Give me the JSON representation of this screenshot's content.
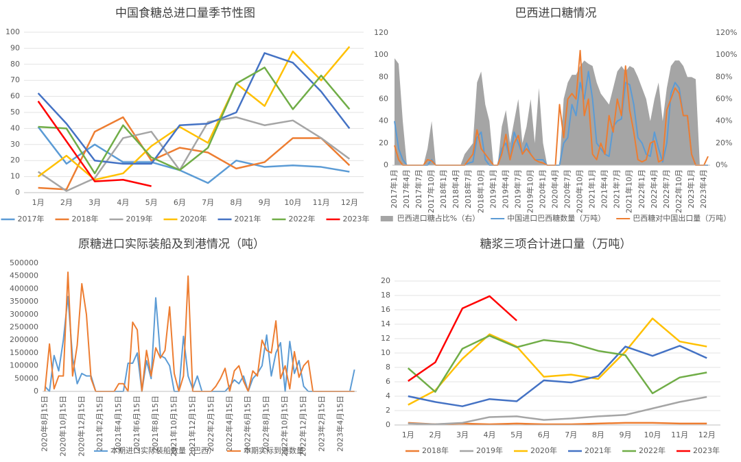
{
  "chart_data": [
    {
      "type": "line",
      "title": "中国食糖总进口量季节性图",
      "categories": [
        "1月",
        "2月",
        "3月",
        "4月",
        "5月",
        "6月",
        "7月",
        "8月",
        "9月",
        "10月",
        "11月",
        "12月"
      ],
      "ylim": [
        0,
        100
      ],
      "yticks": [
        0,
        10,
        20,
        30,
        40,
        50,
        60,
        70,
        80,
        90,
        100
      ],
      "grid": true,
      "series": [
        {
          "name": "2017年",
          "color": "#5b9bd5",
          "values": [
            41,
            18,
            30,
            19,
            19,
            14,
            6,
            20,
            16,
            17,
            16,
            13
          ]
        },
        {
          "name": "2018年",
          "color": "#ed7d31",
          "values": [
            3,
            2,
            38,
            47,
            20,
            28,
            25,
            15,
            19,
            34,
            34,
            17
          ]
        },
        {
          "name": "2019年",
          "color": "#a5a5a5",
          "values": [
            13,
            1,
            9,
            34,
            38,
            14,
            44,
            47,
            42,
            45,
            34,
            21
          ]
        },
        {
          "name": "2020年",
          "color": "#ffc000",
          "values": [
            10,
            23,
            8,
            12,
            29,
            41,
            31,
            68,
            54,
            88,
            70,
            91
          ]
        },
        {
          "name": "2021年",
          "color": "#4472c4",
          "values": [
            62,
            43,
            20,
            18,
            18,
            42,
            43,
            50,
            87,
            81,
            63,
            40
          ]
        },
        {
          "name": "2022年",
          "color": "#70ad47",
          "values": [
            41,
            40,
            12,
            42,
            22,
            14,
            28,
            68,
            78,
            52,
            73,
            52
          ]
        },
        {
          "name": "2023年",
          "color": "#ff0000",
          "values": [
            57,
            32,
            7,
            8,
            4,
            null,
            null,
            null,
            null,
            null,
            null,
            null
          ]
        }
      ]
    },
    {
      "type": "line",
      "title": "巴西进口糖情况",
      "categories": [
        "2017年1月",
        null,
        null,
        "2017年4月",
        null,
        null,
        "2017年7月",
        null,
        null,
        "2017年10月",
        null,
        null,
        "2018年1月",
        null,
        null,
        "2018年4月",
        null,
        null,
        "2018年7月",
        null,
        null,
        "2018年10月",
        null,
        null,
        "2019年1月",
        null,
        null,
        "2019年4月",
        null,
        null,
        "2019年7月",
        null,
        null,
        "2019年10月",
        null,
        null,
        "2020年1月",
        null,
        null,
        "2020年4月",
        null,
        null,
        "2020年7月",
        null,
        null,
        "2020年10月",
        null,
        null,
        "2021年1月",
        null,
        null,
        "2021年4月",
        null,
        null,
        "2021年7月",
        null,
        null,
        "2021年10月",
        null,
        null,
        "2022年1月",
        null,
        null,
        "2022年4月",
        null,
        null,
        "2022年7月",
        null,
        null,
        "2022年10月",
        null,
        null,
        "2023年1月",
        null,
        null,
        "2023年4月",
        null
      ],
      "ylim": [
        0,
        120
      ],
      "yticks": [
        0,
        20,
        40,
        60,
        80,
        100,
        120
      ],
      "grid": false,
      "y2lim": [
        0,
        120
      ],
      "y2ticks": [
        {
          "value": 0,
          "label": "0%"
        },
        {
          "value": 20,
          "label": "20%"
        },
        {
          "value": 40,
          "label": "40%"
        },
        {
          "value": 60,
          "label": "60%"
        },
        {
          "value": 80,
          "label": "80%"
        },
        {
          "value": 100,
          "label": "100%"
        },
        {
          "value": 120,
          "label": "120%"
        }
      ],
      "series": [
        {
          "name": "巴西进口糖占比%（右）",
          "color": "#a5a5a5",
          "kind": "area",
          "axis": "y2",
          "values": [
            97,
            92,
            40,
            0,
            0,
            0,
            0,
            0,
            15,
            40,
            0,
            0,
            0,
            0,
            0,
            0,
            0,
            10,
            15,
            20,
            75,
            85,
            55,
            40,
            0,
            0,
            35,
            50,
            20,
            40,
            60,
            20,
            35,
            60,
            20,
            70,
            20,
            0,
            0,
            0,
            0,
            60,
            75,
            82,
            82,
            90,
            95,
            92,
            90,
            75,
            65,
            60,
            55,
            70,
            85,
            90,
            85,
            90,
            88,
            80,
            70,
            60,
            40,
            60,
            75,
            40,
            70,
            90,
            95,
            95,
            90,
            80,
            80,
            78,
            0,
            0,
            0
          ]
        },
        {
          "name": "中国进口巴西糖数量（万吨）",
          "color": "#5b9bd5",
          "values": [
            40,
            15,
            5,
            0,
            0,
            0,
            0,
            0,
            0,
            5,
            0,
            0,
            0,
            0,
            0,
            0,
            0,
            0,
            2,
            3,
            25,
            30,
            5,
            0,
            0,
            0,
            15,
            20,
            5,
            30,
            20,
            10,
            20,
            10,
            5,
            5,
            5,
            0,
            0,
            0,
            0,
            20,
            25,
            55,
            45,
            75,
            60,
            85,
            60,
            20,
            15,
            10,
            8,
            35,
            40,
            42,
            75,
            73,
            55,
            25,
            20,
            10,
            8,
            30,
            15,
            3,
            20,
            65,
            75,
            70,
            45,
            45,
            10,
            0,
            0,
            0,
            0
          ]
        },
        {
          "name": "巴西糖对中国出口量（万吨）",
          "color": "#ed7d31",
          "values": [
            18,
            5,
            0,
            0,
            0,
            0,
            0,
            0,
            5,
            4,
            0,
            0,
            0,
            0,
            0,
            0,
            0,
            0,
            5,
            10,
            32,
            15,
            10,
            5,
            0,
            0,
            10,
            28,
            5,
            20,
            27,
            10,
            15,
            10,
            5,
            3,
            2,
            0,
            0,
            0,
            55,
            25,
            60,
            65,
            60,
            104,
            45,
            60,
            10,
            5,
            20,
            10,
            45,
            30,
            60,
            45,
            90,
            50,
            30,
            5,
            3,
            5,
            20,
            22,
            3,
            5,
            50,
            60,
            70,
            65,
            45,
            45,
            10,
            0,
            0,
            0,
            8
          ]
        }
      ]
    },
    {
      "type": "line",
      "title": "原糖进口实际装船及到港情况（吨）",
      "categories": [
        "2020年8月15日",
        null,
        null,
        null,
        "2020年10月15日",
        null,
        null,
        null,
        "2020年12月15日",
        null,
        null,
        null,
        "2021年2月15日",
        null,
        null,
        null,
        "2021年4月15日",
        null,
        null,
        null,
        "2021年6月15日",
        null,
        null,
        null,
        "2021年8月15日",
        null,
        null,
        null,
        "2021年10月15日",
        null,
        null,
        null,
        "2021年12月15日",
        null,
        null,
        null,
        "2022年2月15日",
        null,
        null,
        null,
        "2022年4月15日",
        null,
        null,
        null,
        "2022年6月15日",
        null,
        null,
        null,
        "2022年8月15日",
        null,
        null,
        null,
        "2022年10月15日",
        null,
        null,
        null,
        "2022年12月15日",
        null,
        null,
        null,
        "2023年2月15日",
        null,
        null,
        null,
        "2023年4月15日",
        null,
        null,
        null
      ],
      "ylim": [
        0,
        500000
      ],
      "yticks": [
        0,
        50000,
        100000,
        150000,
        200000,
        250000,
        300000,
        350000,
        400000,
        450000,
        500000
      ],
      "grid": false,
      "series": [
        {
          "name": "本期进口实际装船数量（巴西）",
          "color": "#5b9bd5",
          "values": [
            20000,
            0,
            140000,
            80000,
            200000,
            370000,
            130000,
            30000,
            70000,
            60000,
            60000,
            0,
            0,
            0,
            0,
            0,
            0,
            0,
            110000,
            110000,
            150000,
            0,
            120000,
            50000,
            365000,
            140000,
            130000,
            100000,
            0,
            0,
            215000,
            60000,
            10000,
            60000,
            0,
            0,
            0,
            0,
            0,
            0,
            20000,
            45000,
            30000,
            60000,
            0,
            50000,
            70000,
            100000,
            220000,
            60000,
            150000,
            190000,
            0,
            195000,
            70000,
            120000,
            20000,
            0,
            0,
            0,
            0,
            0,
            0,
            0,
            0,
            0,
            0,
            85000
          ]
        },
        {
          "name": "本期实际到港数量",
          "color": "#ed7d31",
          "values": [
            0,
            185000,
            10000,
            60000,
            60000,
            465000,
            60000,
            180000,
            420000,
            300000,
            50000,
            0,
            0,
            0,
            0,
            0,
            30000,
            30000,
            0,
            270000,
            240000,
            0,
            160000,
            60000,
            170000,
            130000,
            160000,
            330000,
            70000,
            0,
            60000,
            450000,
            0,
            0,
            0,
            0,
            0,
            20000,
            50000,
            90000,
            0,
            80000,
            100000,
            40000,
            0,
            80000,
            60000,
            200000,
            160000,
            150000,
            275000,
            50000,
            100000,
            10000,
            155000,
            55000,
            100000,
            120000,
            0,
            0,
            0,
            0,
            0,
            0,
            0,
            0,
            0,
            0
          ]
        }
      ]
    },
    {
      "type": "line",
      "title": "糖浆三项合计进口量（万吨）",
      "categories": [
        "1月",
        "2月",
        "3月",
        "4月",
        "5月",
        "6月",
        "7月",
        "8月",
        "9月",
        "10月",
        "11月",
        "12月"
      ],
      "ylim": [
        0,
        20
      ],
      "yticks": [
        0,
        2,
        4,
        6,
        8,
        10,
        12,
        14,
        16,
        18,
        20
      ],
      "grid": true,
      "series": [
        {
          "name": "2018年",
          "color": "#ed7d31",
          "values": [
            0.3,
            0.1,
            0.2,
            0.1,
            0.2,
            0.1,
            0.1,
            0.2,
            0.3,
            0.3,
            0.2,
            0.2
          ]
        },
        {
          "name": "2019年",
          "color": "#a5a5a5",
          "values": [
            0.2,
            0.1,
            0.3,
            1.1,
            1.2,
            0.7,
            0.9,
            1.2,
            1.4,
            2.3,
            3.2,
            3.9
          ]
        },
        {
          "name": "2020年",
          "color": "#ffc000",
          "values": [
            2.8,
            4.8,
            9.2,
            12.6,
            10.9,
            6.7,
            7.0,
            6.4,
            10.2,
            14.8,
            11.6,
            10.9
          ]
        },
        {
          "name": "2021年",
          "color": "#4472c4",
          "values": [
            4.0,
            3.2,
            2.6,
            3.6,
            3.3,
            6.2,
            5.9,
            6.8,
            10.9,
            9.6,
            11.0,
            9.3
          ]
        },
        {
          "name": "2022年",
          "color": "#70ad47",
          "values": [
            7.9,
            4.6,
            10.6,
            12.4,
            10.8,
            11.8,
            11.4,
            10.3,
            9.7,
            4.4,
            6.6,
            7.3
          ]
        },
        {
          "name": "2023年",
          "color": "#ff0000",
          "values": [
            6.1,
            8.7,
            16.2,
            17.9,
            14.5,
            null,
            null,
            null,
            null,
            null,
            null,
            null
          ]
        }
      ]
    }
  ]
}
